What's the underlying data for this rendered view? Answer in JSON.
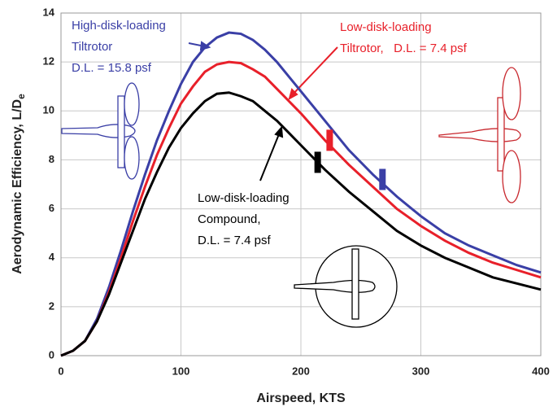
{
  "chart_data": {
    "type": "line",
    "xlabel": "Airspeed, KTS",
    "ylabel": "Aerodynamic Efficiency, L/D",
    "ylabel_subscript": "e",
    "xlim": [
      0,
      400
    ],
    "xticks": [
      0,
      100,
      200,
      300,
      400
    ],
    "ylim": [
      0,
      14
    ],
    "yticks": [
      0,
      2,
      4,
      6,
      8,
      10,
      12,
      14
    ],
    "grid": true,
    "x": [
      0,
      10,
      20,
      30,
      40,
      50,
      60,
      70,
      80,
      90,
      100,
      110,
      120,
      130,
      140,
      150,
      160,
      170,
      180,
      190,
      200,
      220,
      240,
      260,
      280,
      300,
      320,
      340,
      360,
      380,
      400
    ],
    "series": [
      {
        "color": "#3a3fa6",
        "values": [
          0,
          0.2,
          0.6,
          1.5,
          2.8,
          4.3,
          5.9,
          7.4,
          8.8,
          10.0,
          11.1,
          12.0,
          12.6,
          13.0,
          13.2,
          13.15,
          12.9,
          12.5,
          12.0,
          11.4,
          10.8,
          9.6,
          8.4,
          7.4,
          6.5,
          5.7,
          5.0,
          4.5,
          4.1,
          3.7,
          3.4
        ],
        "marker": {
          "x": 268,
          "y": 7.2
        }
      },
      {
        "color": "#e8202a",
        "values": [
          0,
          0.2,
          0.6,
          1.4,
          2.6,
          4.0,
          5.5,
          6.9,
          8.2,
          9.3,
          10.3,
          11.0,
          11.6,
          11.9,
          12.0,
          11.95,
          11.7,
          11.4,
          10.9,
          10.4,
          9.9,
          8.8,
          7.8,
          6.9,
          6.0,
          5.3,
          4.7,
          4.2,
          3.8,
          3.5,
          3.2
        ],
        "marker": {
          "x": 224,
          "y": 8.8
        }
      },
      {
        "color": "#000000",
        "values": [
          0,
          0.2,
          0.6,
          1.4,
          2.5,
          3.8,
          5.1,
          6.4,
          7.5,
          8.5,
          9.3,
          9.9,
          10.4,
          10.7,
          10.75,
          10.6,
          10.4,
          10.0,
          9.6,
          9.1,
          8.6,
          7.6,
          6.7,
          5.9,
          5.1,
          4.5,
          4.0,
          3.6,
          3.2,
          2.95,
          2.7
        ],
        "marker": {
          "x": 214,
          "y": 7.9
        }
      }
    ],
    "annotations": [
      {
        "color": "#3a3fa6",
        "lines": [
          "High-disk-loading",
          "Tiltrotor",
          "D.L. = 15.8 psf"
        ]
      },
      {
        "color": "#e8202a",
        "lines": [
          "Low-disk-loading",
          "Tiltrotor,   D.L. = 7.4 psf"
        ]
      },
      {
        "color": "#000000",
        "lines": [
          "Low-disk-loading",
          "Compound,",
          "D.L. = 7.4 psf"
        ]
      }
    ]
  }
}
